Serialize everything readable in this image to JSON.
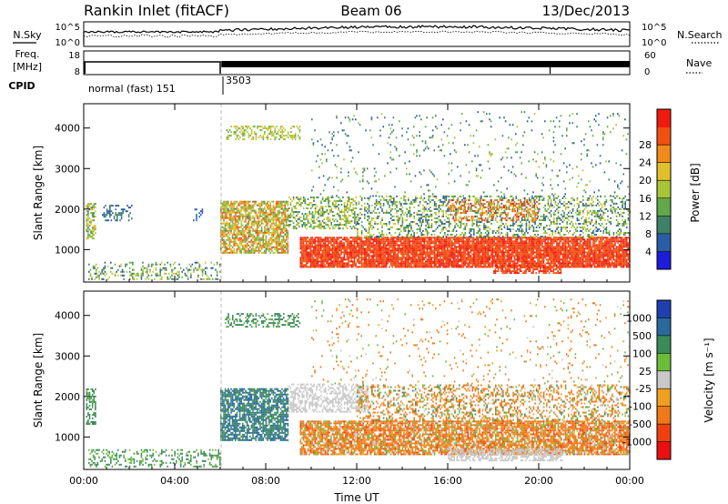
{
  "header": {
    "station": "Rankin Inlet (fitACF)",
    "beam": "Beam 06",
    "date": "13/Dec/2013"
  },
  "housekeeping": {
    "nsky_label": "N.Sky",
    "nsky_ticks": [
      "10^5",
      "10^0"
    ],
    "nsearch_label": "N.Search",
    "nsearch_ticks": [
      "10^5",
      "10^0"
    ],
    "freq_label": "Freq.",
    "freq_unit": "[MHz]",
    "freq_ticks": [
      "18",
      "8"
    ],
    "nave_label": "Nave",
    "nave_ticks": [
      "60",
      "0"
    ],
    "cpid_label": "CPID",
    "cpid_segments": [
      {
        "label": "normal (fast) 151",
        "start_hour": 0,
        "end_hour": 6
      },
      {
        "label": "3503",
        "start_hour": 6,
        "end_hour": 24
      }
    ]
  },
  "chart_data": [
    {
      "type": "heatmap",
      "title": "",
      "quantity": "Power",
      "xlabel": "Time UT",
      "ylabel": "Slant Range [km]",
      "xlim_hours": [
        0,
        24
      ],
      "ylim_km": [
        200,
        4600
      ],
      "xticks": [
        "00:00",
        "04:00",
        "08:00",
        "12:00",
        "16:00",
        "20:00",
        "00:00"
      ],
      "yticks": [
        "1000",
        "2000",
        "3000",
        "4000"
      ],
      "colorbar": {
        "label": "Power [dB]",
        "ticks": [
          "4",
          "8",
          "12",
          "16",
          "20",
          "24",
          "28"
        ],
        "colors": [
          "#1d1dd8",
          "#2b5ca6",
          "#3f8068",
          "#60a848",
          "#a8c438",
          "#e0c02a",
          "#f08a18",
          "#f25010",
          "#f01a10"
        ]
      },
      "regions": [
        {
          "t0": 0.1,
          "t1": 0.5,
          "r0": 1250,
          "r1": 2150,
          "density": 0.55,
          "power": [
            8,
            22
          ]
        },
        {
          "t0": 0.8,
          "t1": 2.1,
          "r0": 1700,
          "r1": 2100,
          "density": 0.35,
          "power": [
            4,
            10
          ]
        },
        {
          "t0": 4.8,
          "t1": 5.2,
          "r0": 1700,
          "r1": 2000,
          "density": 0.3,
          "power": [
            4,
            8
          ]
        },
        {
          "t0": 0.2,
          "t1": 6.0,
          "r0": 250,
          "r1": 700,
          "density": 0.28,
          "power": [
            4,
            20
          ]
        },
        {
          "t0": 6.0,
          "t1": 9.0,
          "r0": 900,
          "r1": 2200,
          "density": 0.75,
          "power": [
            10,
            28
          ]
        },
        {
          "t0": 6.2,
          "t1": 9.5,
          "r0": 3700,
          "r1": 4050,
          "density": 0.4,
          "power": [
            12,
            20
          ]
        },
        {
          "t0": 9.0,
          "t1": 12.0,
          "r0": 1500,
          "r1": 2300,
          "density": 0.45,
          "power": [
            8,
            20
          ]
        },
        {
          "t0": 9.5,
          "t1": 24.0,
          "r0": 550,
          "r1": 1300,
          "density": 0.9,
          "power": [
            26,
            30
          ]
        },
        {
          "t0": 12.0,
          "t1": 24.0,
          "r0": 1300,
          "r1": 2300,
          "density": 0.35,
          "power": [
            4,
            20
          ]
        },
        {
          "t0": 16.0,
          "t1": 20.0,
          "r0": 1700,
          "r1": 2200,
          "density": 0.35,
          "power": [
            20,
            30
          ]
        },
        {
          "t0": 18.0,
          "t1": 21.0,
          "r0": 400,
          "r1": 600,
          "density": 0.7,
          "power": [
            26,
            30
          ]
        },
        {
          "t0": 10.0,
          "t1": 24.0,
          "r0": 2300,
          "r1": 4400,
          "density": 0.05,
          "power": [
            4,
            16
          ]
        }
      ]
    },
    {
      "type": "heatmap",
      "title": "",
      "quantity": "Velocity",
      "xlabel": "Time UT",
      "ylabel": "Slant Range [km]",
      "xlim_hours": [
        0,
        24
      ],
      "ylim_km": [
        200,
        4600
      ],
      "xticks": [
        "00:00",
        "04:00",
        "08:00",
        "12:00",
        "16:00",
        "20:00",
        "00:00"
      ],
      "yticks": [
        "1000",
        "2000",
        "3000",
        "4000"
      ],
      "colorbar": {
        "label": "Velocity [m s⁻¹]",
        "ticks": [
          "1000",
          "500",
          "100",
          "25",
          "-25",
          "-100",
          "-500",
          "-1000"
        ],
        "colors": [
          "#2040b0",
          "#2a6a9a",
          "#3b8a5a",
          "#6cbc3c",
          "#c8c8c8",
          "#f0a020",
          "#f07818",
          "#f04010",
          "#e81010"
        ]
      },
      "regions": [
        {
          "t0": 0.1,
          "t1": 0.5,
          "r0": 1300,
          "r1": 2200,
          "density": 0.55,
          "vel": [
            25,
            300
          ]
        },
        {
          "t0": 0.2,
          "t1": 6.0,
          "r0": 250,
          "r1": 700,
          "density": 0.3,
          "vel": [
            25,
            200
          ]
        },
        {
          "t0": 6.0,
          "t1": 9.0,
          "r0": 900,
          "r1": 2200,
          "density": 0.75,
          "vel": [
            100,
            900
          ]
        },
        {
          "t0": 6.2,
          "t1": 9.5,
          "r0": 3700,
          "r1": 4050,
          "density": 0.4,
          "vel": [
            50,
            300
          ]
        },
        {
          "t0": 9.5,
          "t1": 24.0,
          "r0": 550,
          "r1": 1400,
          "density": 0.8,
          "vel": [
            -600,
            100
          ]
        },
        {
          "t0": 9.0,
          "t1": 12.5,
          "r0": 1600,
          "r1": 2300,
          "density": 0.5,
          "vel": [
            -25,
            25
          ]
        },
        {
          "t0": 12.0,
          "t1": 24.0,
          "r0": 1400,
          "r1": 2300,
          "density": 0.35,
          "vel": [
            -500,
            200
          ]
        },
        {
          "t0": 16.0,
          "t1": 21.0,
          "r0": 400,
          "r1": 700,
          "density": 0.6,
          "vel": [
            -25,
            25
          ]
        },
        {
          "t0": 10.0,
          "t1": 24.0,
          "r0": 2300,
          "r1": 4400,
          "density": 0.05,
          "vel": [
            -300,
            100
          ]
        }
      ]
    }
  ]
}
